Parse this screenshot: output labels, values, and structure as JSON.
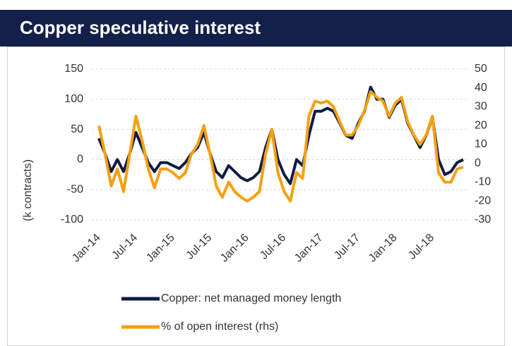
{
  "chart_data": {
    "type": "line",
    "title": "Copper speculative interest",
    "ylabel": "(k contracts)",
    "categories": [
      "Jan-14",
      null,
      null,
      null,
      null,
      null,
      "Jul-14",
      null,
      null,
      null,
      null,
      null,
      "Jan-15",
      null,
      null,
      null,
      null,
      null,
      "Jul-15",
      null,
      null,
      null,
      null,
      null,
      "Jan-16",
      null,
      null,
      null,
      null,
      null,
      "Jul-16",
      null,
      null,
      null,
      null,
      null,
      "Jan-17",
      null,
      null,
      null,
      null,
      null,
      "Jul-17",
      null,
      null,
      null,
      null,
      null,
      "Jan-18",
      null,
      null,
      null,
      null,
      null,
      "Jul-18",
      null,
      null,
      null,
      null,
      null
    ],
    "series": [
      {
        "name": "Copper: net managed money length",
        "color": "#0e1c44",
        "axis": "y",
        "values": [
          35,
          10,
          -20,
          0,
          -20,
          10,
          45,
          20,
          -5,
          -20,
          -5,
          -5,
          -10,
          -15,
          -5,
          10,
          20,
          45,
          10,
          -20,
          -30,
          -10,
          -20,
          -30,
          -35,
          -30,
          -20,
          20,
          50,
          0,
          -25,
          -40,
          0,
          -10,
          40,
          80,
          80,
          85,
          80,
          60,
          40,
          35,
          60,
          80,
          120,
          100,
          100,
          70,
          90,
          100,
          60,
          40,
          20,
          40,
          70,
          0,
          -25,
          -20,
          -5,
          0
        ]
      },
      {
        "name": "% of open interest (rhs)",
        "color": "#f5a010",
        "axis": "y2",
        "values": [
          20,
          5,
          -12,
          -3,
          -15,
          5,
          25,
          12,
          -3,
          -13,
          -3,
          -3,
          -5,
          -8,
          -5,
          5,
          10,
          20,
          5,
          -12,
          -18,
          -10,
          -15,
          -18,
          -20,
          -18,
          -15,
          5,
          18,
          -5,
          -15,
          -20,
          -5,
          -8,
          25,
          33,
          32,
          33,
          30,
          22,
          15,
          15,
          20,
          28,
          38,
          35,
          33,
          25,
          32,
          35,
          22,
          15,
          10,
          15,
          25,
          -5,
          -10,
          -10,
          -3,
          -2
        ]
      }
    ],
    "ylim": [
      -100,
      150
    ],
    "yticks": [
      150,
      100,
      50,
      0,
      -50,
      -100
    ],
    "y2lim": [
      -30,
      50
    ],
    "y2ticks": [
      50,
      40,
      30,
      20,
      10,
      0,
      -10,
      -20,
      -30
    ],
    "grid": true
  }
}
